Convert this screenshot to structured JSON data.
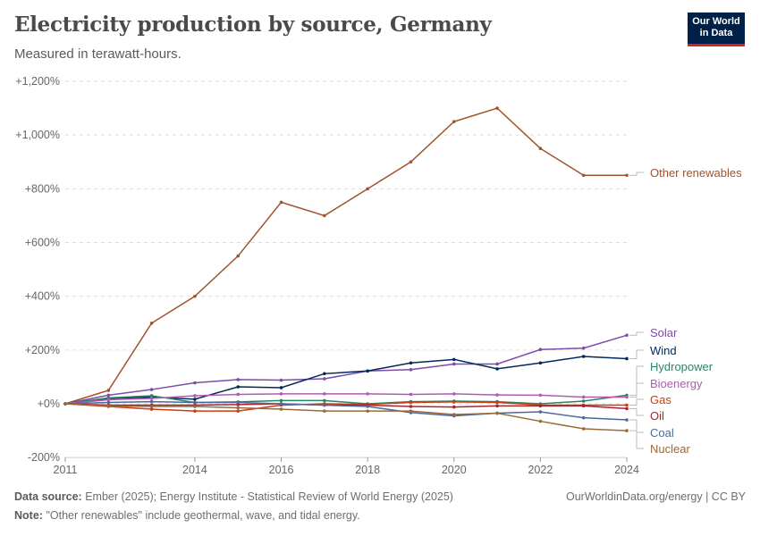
{
  "header": {
    "title": "Electricity production by source, Germany",
    "subtitle": "Measured in terawatt-hours.",
    "logo_text": "Our World in Data"
  },
  "footer": {
    "source_label": "Data source:",
    "source": "Ember (2025); Energy Institute - Statistical Review of World Energy (2025)",
    "url": "OurWorldinData.org/energy | CC BY",
    "note_label": "Note:",
    "note": "\"Other renewables\" include geothermal, wave, and tidal energy."
  },
  "chart_data": {
    "type": "line",
    "x": [
      2011,
      2012,
      2013,
      2014,
      2015,
      2016,
      2017,
      2018,
      2019,
      2020,
      2021,
      2022,
      2023,
      2024
    ],
    "x_ticks": [
      "2011",
      "2014",
      "2016",
      "2018",
      "2020",
      "2022",
      "2024"
    ],
    "y_ticks": [
      "-200%",
      "+0%",
      "+200%",
      "+400%",
      "+600%",
      "+800%",
      "+1,000%",
      "+1,200%"
    ],
    "ylim": [
      -200,
      1200
    ],
    "grid": true,
    "legend": "right (line labels)",
    "series": [
      {
        "name": "Other renewables",
        "color": "#a0522d",
        "values": [
          0,
          50,
          300,
          400,
          550,
          750,
          700,
          800,
          900,
          1050,
          1100,
          950,
          850,
          850
        ]
      },
      {
        "name": "Solar",
        "color": "#7b4ca8",
        "values": [
          0,
          32,
          53,
          78,
          90,
          88,
          93,
          122,
          127,
          148,
          148,
          202,
          207,
          255
        ]
      },
      {
        "name": "Wind",
        "color": "#00295b",
        "values": [
          0,
          20,
          25,
          17,
          63,
          60,
          112,
          122,
          152,
          165,
          130,
          152,
          176,
          168
        ]
      },
      {
        "name": "Hydropower",
        "color": "#2c8465",
        "values": [
          0,
          22,
          30,
          5,
          7,
          12,
          12,
          0,
          8,
          10,
          8,
          0,
          10,
          32
        ]
      },
      {
        "name": "Bioenergy",
        "color": "#b15ab3",
        "values": [
          0,
          15,
          20,
          30,
          35,
          37,
          37,
          37,
          35,
          37,
          33,
          32,
          25,
          25
        ]
      },
      {
        "name": "Gas",
        "color": "#cc3d12",
        "values": [
          0,
          -10,
          -20,
          -27,
          -27,
          -5,
          0,
          -2,
          5,
          7,
          5,
          -5,
          -5,
          -5
        ]
      },
      {
        "name": "Oil",
        "color": "#a2262f",
        "values": [
          0,
          -5,
          -5,
          -5,
          -3,
          0,
          -5,
          -5,
          -10,
          -12,
          -8,
          -8,
          -8,
          -18
        ]
      },
      {
        "name": "Coal",
        "color": "#4c6a9c",
        "values": [
          0,
          5,
          8,
          5,
          5,
          0,
          -5,
          -10,
          -33,
          -45,
          -35,
          -30,
          -52,
          -60
        ]
      },
      {
        "name": "Nuclear",
        "color": "#9a6a3a",
        "values": [
          0,
          -8,
          -10,
          -10,
          -15,
          -20,
          -27,
          -27,
          -27,
          -40,
          -35,
          -65,
          -93,
          -100
        ]
      }
    ]
  }
}
